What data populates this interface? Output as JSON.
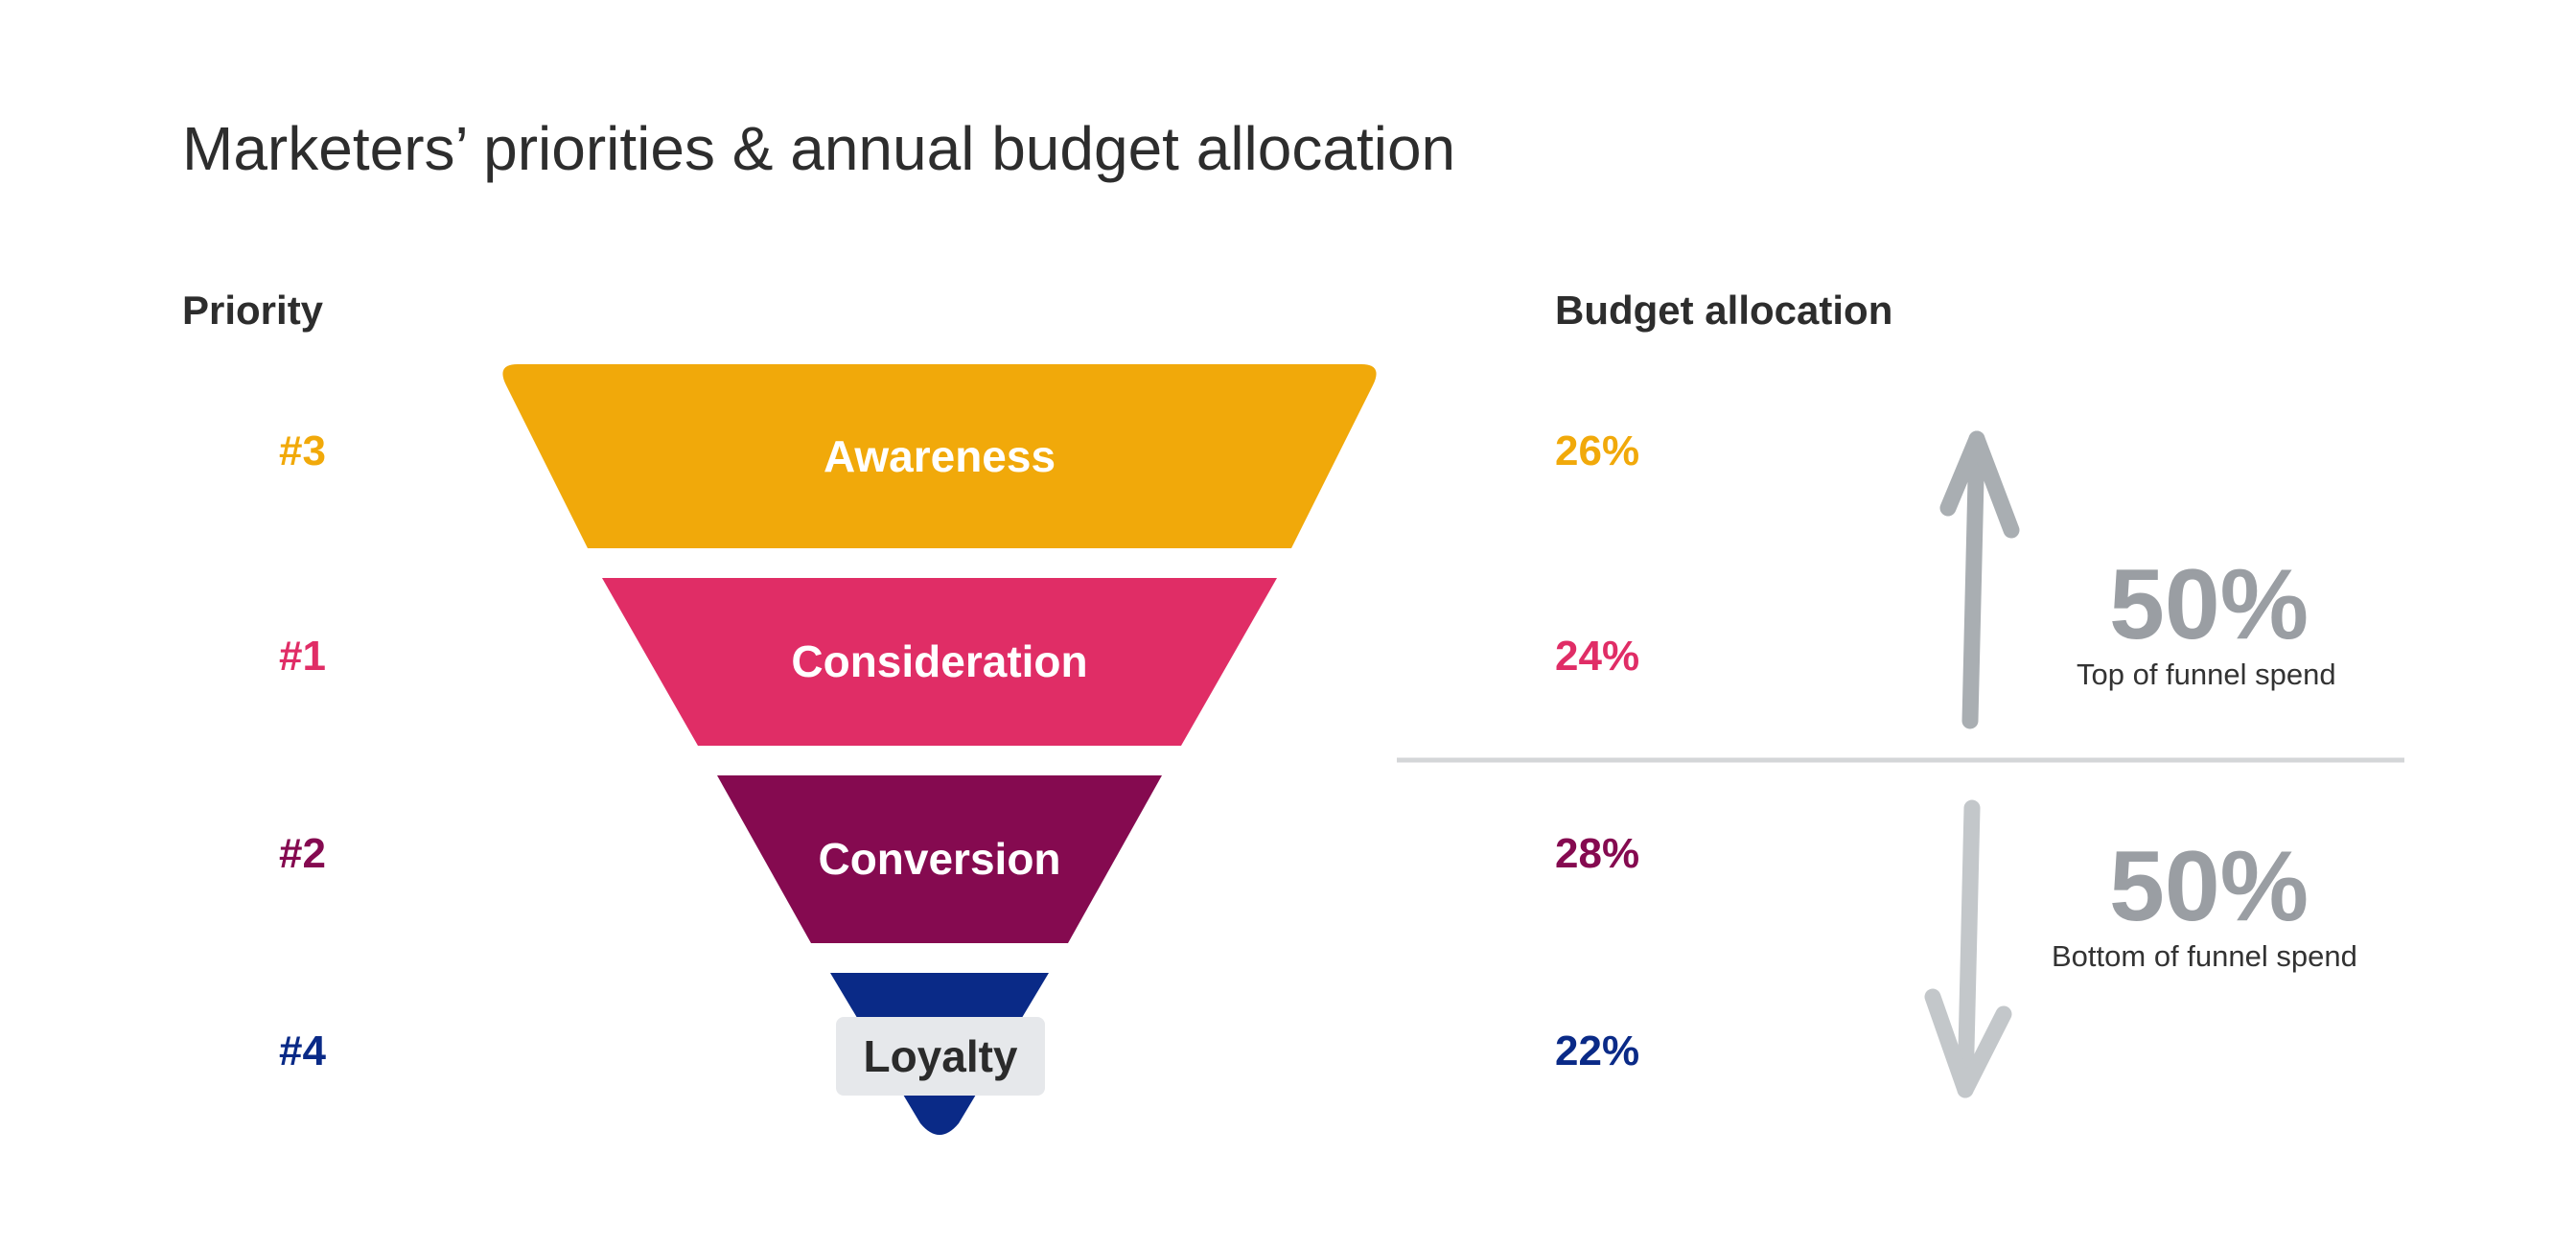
{
  "title": "Marketers’ priorities & annual budget allocation",
  "headers": {
    "priority": "Priority",
    "budget": "Budget allocation"
  },
  "stages": [
    {
      "name": "Awareness",
      "priority": "#3",
      "budget": "26%",
      "color": "#f1a90a"
    },
    {
      "name": "Consideration",
      "priority": "#1",
      "budget": "24%",
      "color": "#e02d66"
    },
    {
      "name": "Conversion",
      "priority": "#2",
      "budget": "28%",
      "color": "#850a50"
    },
    {
      "name": "Loyalty",
      "priority": "#4",
      "budget": "22%",
      "color": "#0a2a87"
    }
  ],
  "summary": {
    "top": {
      "value": "50%",
      "label": "Top of funnel spend"
    },
    "bottom": {
      "value": "50%",
      "label": "Bottom of funnel spend"
    }
  },
  "colors": {
    "arrow": "#b3b8bc",
    "divider": "#d4d6d8",
    "summary_value": "#9a9ea3"
  }
}
